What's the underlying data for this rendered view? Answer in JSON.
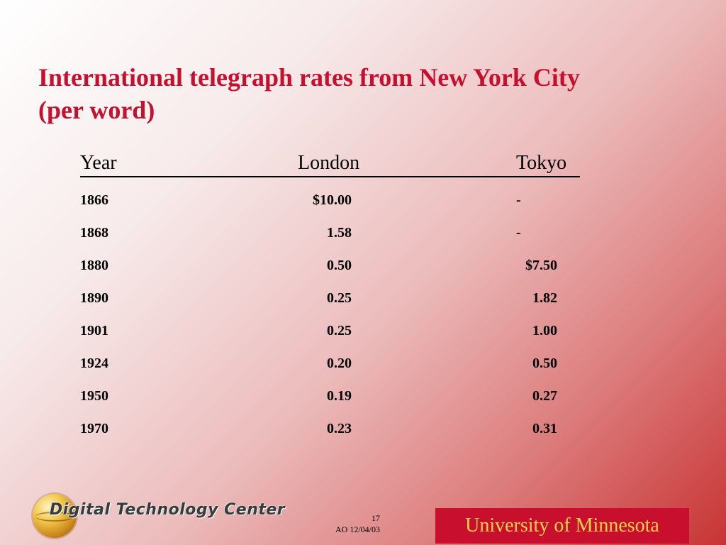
{
  "title": {
    "line1": "International telegraph rates from New York City",
    "line2": "(per word)"
  },
  "table": {
    "headers": {
      "year": "Year",
      "london": "London",
      "tokyo": "Tokyo"
    },
    "rows": [
      {
        "year": "1866",
        "london": "$10.00",
        "tokyo": "-"
      },
      {
        "year": "1868",
        "london": "1.58",
        "tokyo": "-"
      },
      {
        "year": "1880",
        "london": "0.50",
        "tokyo": "$7.50"
      },
      {
        "year": "1890",
        "london": "0.25",
        "tokyo": "1.82"
      },
      {
        "year": "1901",
        "london": "0.25",
        "tokyo": "1.00"
      },
      {
        "year": "1924",
        "london": "0.20",
        "tokyo": "0.50"
      },
      {
        "year": "1950",
        "london": "0.19",
        "tokyo": "0.27"
      },
      {
        "year": "1970",
        "london": "0.23",
        "tokyo": "0.31"
      }
    ]
  },
  "footer": {
    "logo_text": "Digital Technology Center",
    "page_number": "17",
    "author_date": "AO 12/04/03",
    "institution": "University of Minnesota"
  },
  "colors": {
    "title": "#c8102e",
    "umn_box": "#c8102e",
    "umn_text": "#ffd24a"
  }
}
